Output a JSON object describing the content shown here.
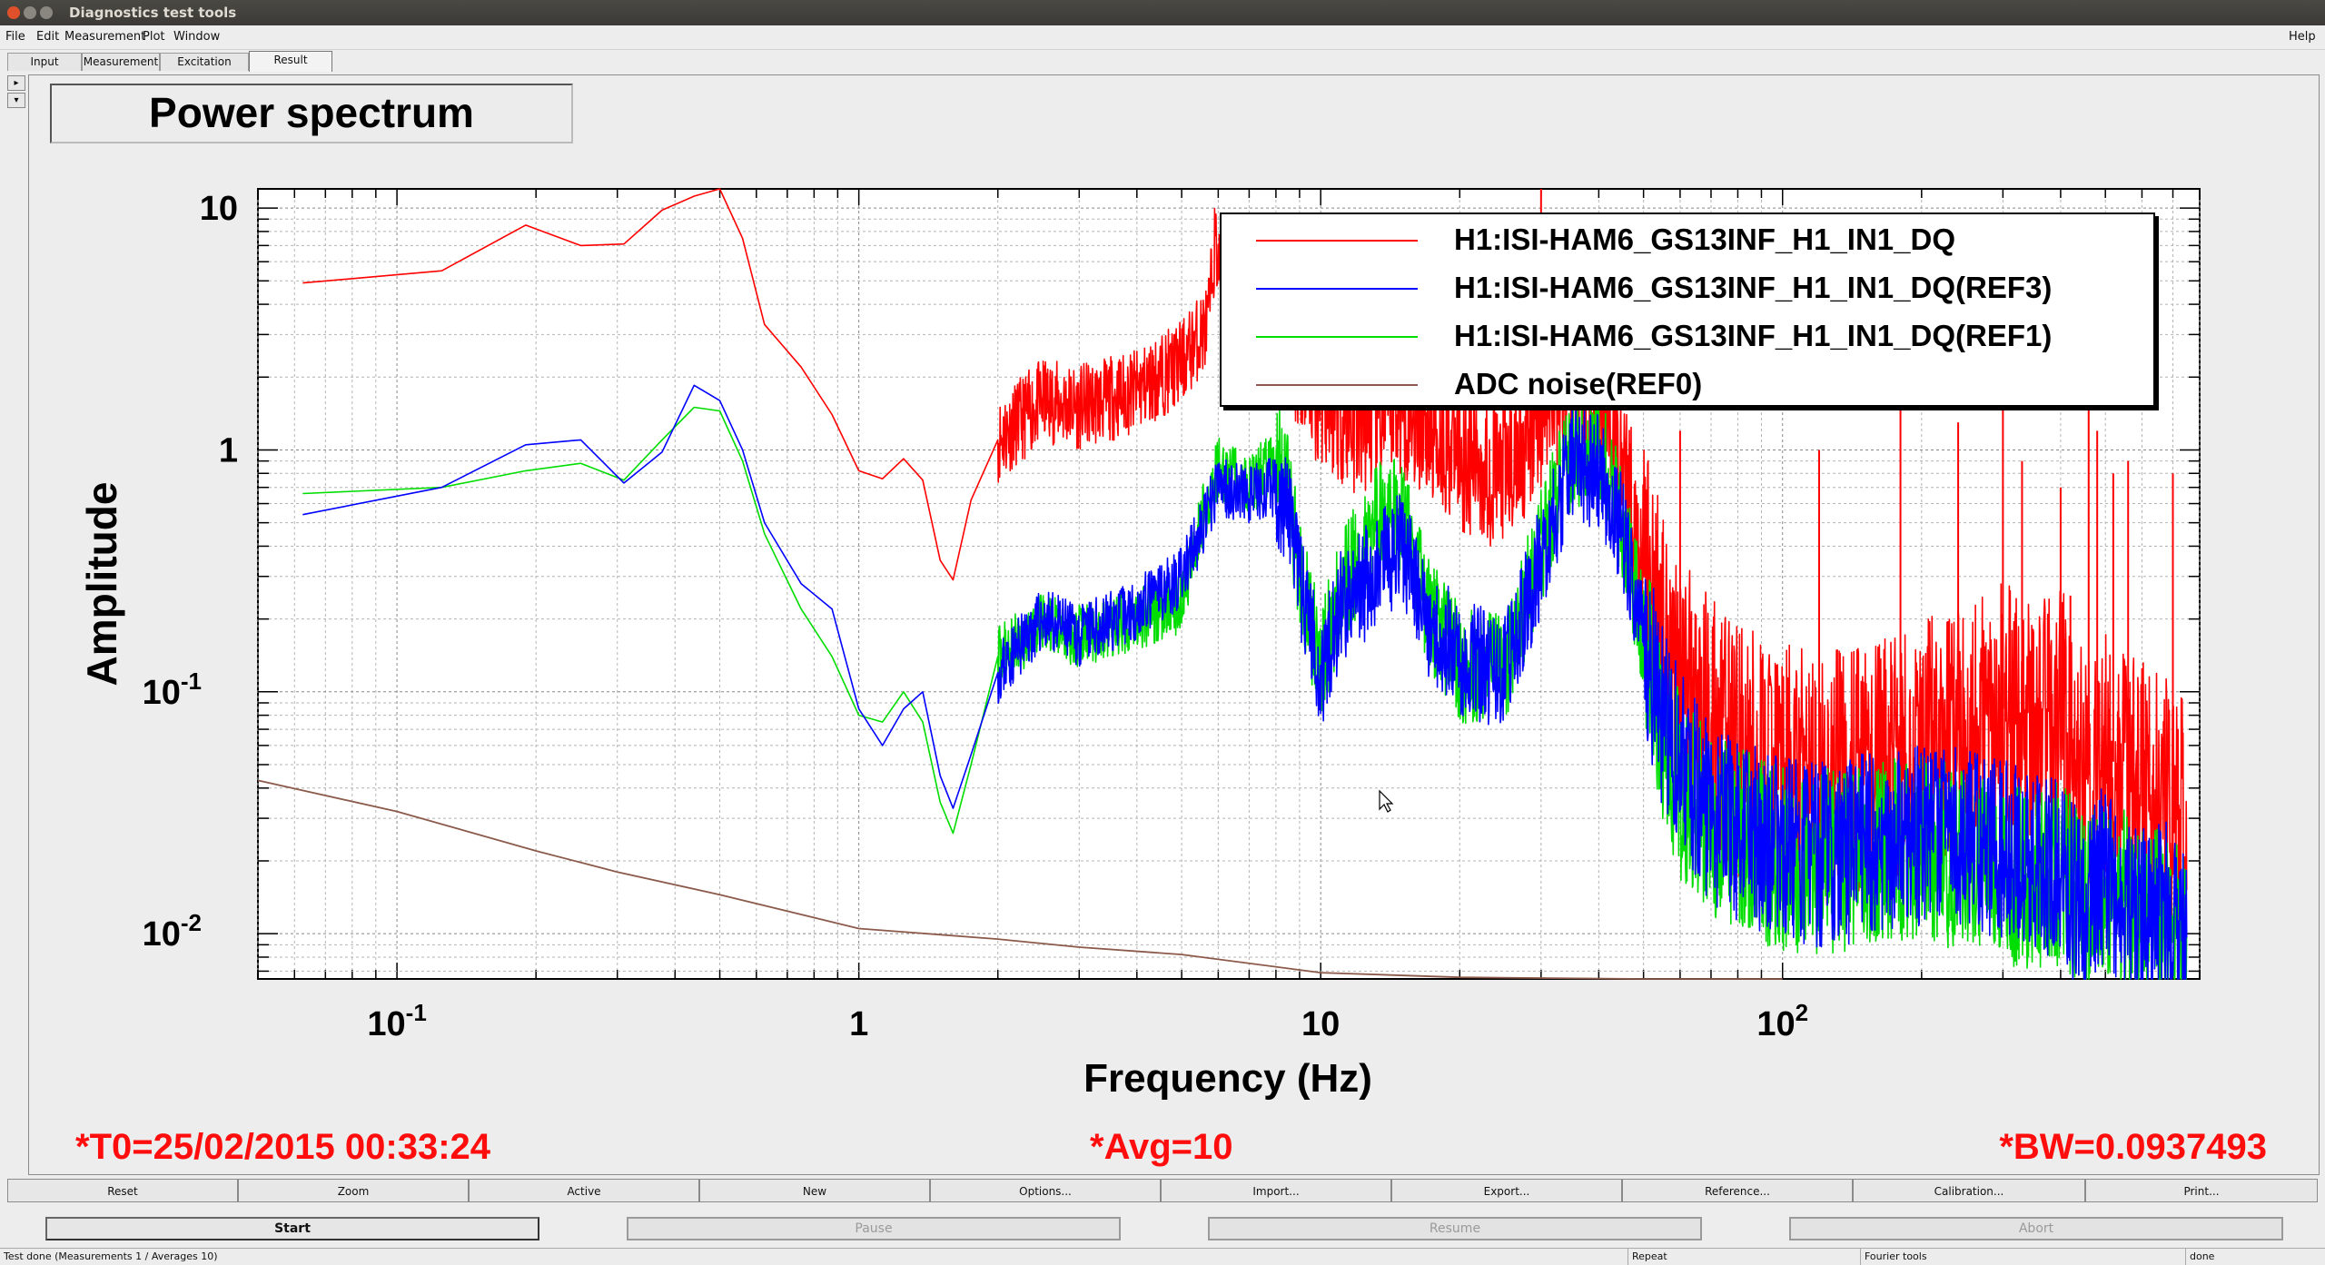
{
  "window": {
    "title": "Diagnostics test tools"
  },
  "menu": {
    "items": [
      "File",
      "Edit",
      "Measurement",
      "Plot",
      "Window"
    ],
    "help": "Help"
  },
  "tabs": [
    {
      "label": "Input",
      "active": false
    },
    {
      "label": "Measurement",
      "active": false
    },
    {
      "label": "Excitation",
      "active": false
    },
    {
      "label": "Result",
      "active": true
    }
  ],
  "plot": {
    "title": "Power spectrum",
    "status": {
      "t0": "*T0=25/02/2015 00:33:24",
      "avg": "*Avg=10",
      "bw": "*BW=0.0937493"
    }
  },
  "chart_data": {
    "type": "line",
    "title": "Power spectrum",
    "xlabel": "Frequency (Hz)",
    "ylabel": "Amplitude",
    "xscale": "log",
    "yscale": "log",
    "xlim": [
      0.05,
      800
    ],
    "ylim": [
      0.0065,
      12
    ],
    "grid": true,
    "legend_position": "top-right",
    "x_ticks": [
      {
        "value": 0.1,
        "label": "10",
        "exp": "-1"
      },
      {
        "value": 1,
        "label": "1",
        "exp": ""
      },
      {
        "value": 10,
        "label": "10",
        "exp": ""
      },
      {
        "value": 100,
        "label": "10",
        "exp": "2"
      }
    ],
    "y_ticks": [
      {
        "value": 10,
        "label": "10",
        "exp": ""
      },
      {
        "value": 1,
        "label": "1",
        "exp": ""
      },
      {
        "value": 0.1,
        "label": "10",
        "exp": "-1"
      },
      {
        "value": 0.01,
        "label": "10",
        "exp": "-2"
      }
    ],
    "series": [
      {
        "name": "H1:ISI-HAM6_GS13INF_H1_IN1_DQ",
        "color": "#ff0000",
        "noise": 0.22,
        "seed": 11,
        "points": [
          [
            0.0625,
            4.9
          ],
          [
            0.125,
            5.5
          ],
          [
            0.19,
            8.5
          ],
          [
            0.25,
            7.0
          ],
          [
            0.31,
            7.1
          ],
          [
            0.375,
            9.8
          ],
          [
            0.44,
            11.2
          ],
          [
            0.5,
            12.2
          ],
          [
            0.56,
            7.5
          ],
          [
            0.625,
            3.3
          ],
          [
            0.75,
            2.2
          ],
          [
            0.875,
            1.4
          ],
          [
            1.0,
            0.82
          ],
          [
            1.125,
            0.76
          ],
          [
            1.25,
            0.92
          ],
          [
            1.375,
            0.75
          ],
          [
            1.5,
            0.35
          ],
          [
            1.6,
            0.29
          ],
          [
            1.75,
            0.62
          ],
          [
            2.0,
            1.1
          ],
          [
            2.5,
            1.6
          ],
          [
            3.0,
            1.5
          ],
          [
            4.0,
            1.75
          ],
          [
            5.0,
            2.3
          ],
          [
            5.7,
            3.3
          ],
          [
            5.9,
            7.2
          ],
          [
            6.3,
            3.5
          ],
          [
            7.0,
            5.5
          ],
          [
            8.0,
            4.5
          ],
          [
            9.0,
            2.4
          ],
          [
            10.0,
            1.8
          ],
          [
            12.0,
            1.3
          ],
          [
            15.0,
            1.6
          ],
          [
            20.0,
            1.0
          ],
          [
            25.0,
            0.78
          ],
          [
            30.0,
            1.4
          ],
          [
            35.0,
            2.3
          ],
          [
            40.0,
            1.7
          ],
          [
            45.0,
            0.9
          ],
          [
            50.0,
            0.35
          ],
          [
            55.0,
            0.17
          ],
          [
            60.0,
            0.11
          ],
          [
            70.0,
            0.075
          ],
          [
            80.0,
            0.057
          ],
          [
            100.0,
            0.047
          ],
          [
            120.0,
            0.043
          ],
          [
            150.0,
            0.046
          ],
          [
            200.0,
            0.058
          ],
          [
            250.0,
            0.072
          ],
          [
            300.0,
            0.085
          ],
          [
            350.0,
            0.07
          ],
          [
            400.0,
            0.082
          ],
          [
            450.0,
            0.045
          ],
          [
            500.0,
            0.055
          ],
          [
            600.0,
            0.04
          ],
          [
            700.0,
            0.032
          ],
          [
            750.0,
            0.028
          ]
        ]
      },
      {
        "name": "H1:ISI-HAM6_GS13INF_H1_IN1_DQ(REF3)",
        "color": "#0000ff",
        "noise": 0.16,
        "seed": 23,
        "points": [
          [
            0.0625,
            0.54
          ],
          [
            0.125,
            0.7
          ],
          [
            0.19,
            1.05
          ],
          [
            0.25,
            1.1
          ],
          [
            0.31,
            0.73
          ],
          [
            0.375,
            0.98
          ],
          [
            0.44,
            1.85
          ],
          [
            0.5,
            1.6
          ],
          [
            0.56,
            1.0
          ],
          [
            0.625,
            0.5
          ],
          [
            0.75,
            0.28
          ],
          [
            0.875,
            0.22
          ],
          [
            1.0,
            0.085
          ],
          [
            1.125,
            0.06
          ],
          [
            1.25,
            0.085
          ],
          [
            1.375,
            0.1
          ],
          [
            1.5,
            0.045
          ],
          [
            1.6,
            0.033
          ],
          [
            1.75,
            0.055
          ],
          [
            2.0,
            0.12
          ],
          [
            2.5,
            0.2
          ],
          [
            3.0,
            0.17
          ],
          [
            4.0,
            0.22
          ],
          [
            5.0,
            0.3
          ],
          [
            5.5,
            0.45
          ],
          [
            6.0,
            0.72
          ],
          [
            7.0,
            0.65
          ],
          [
            8.0,
            0.7
          ],
          [
            8.5,
            0.55
          ],
          [
            9.0,
            0.28
          ],
          [
            10.0,
            0.12
          ],
          [
            11.0,
            0.22
          ],
          [
            13.0,
            0.3
          ],
          [
            15.0,
            0.4
          ],
          [
            17.0,
            0.2
          ],
          [
            20.0,
            0.14
          ],
          [
            25.0,
            0.12
          ],
          [
            30.0,
            0.35
          ],
          [
            35.0,
            0.9
          ],
          [
            40.0,
            0.8
          ],
          [
            45.0,
            0.45
          ],
          [
            50.0,
            0.16
          ],
          [
            55.0,
            0.08
          ],
          [
            60.0,
            0.05
          ],
          [
            70.0,
            0.032
          ],
          [
            80.0,
            0.027
          ],
          [
            100.0,
            0.022
          ],
          [
            130.0,
            0.021
          ],
          [
            160.0,
            0.024
          ],
          [
            200.0,
            0.026
          ],
          [
            250.0,
            0.024
          ],
          [
            300.0,
            0.022
          ],
          [
            350.0,
            0.019
          ],
          [
            400.0,
            0.02
          ],
          [
            450.0,
            0.012
          ],
          [
            500.0,
            0.018
          ],
          [
            600.0,
            0.012
          ],
          [
            700.0,
            0.012
          ],
          [
            750.0,
            0.011
          ]
        ]
      },
      {
        "name": "H1:ISI-HAM6_GS13INF_H1_IN1_DQ(REF1)",
        "color": "#00dd00",
        "noise": 0.16,
        "seed": 37,
        "points": [
          [
            0.0625,
            0.66
          ],
          [
            0.125,
            0.7
          ],
          [
            0.19,
            0.82
          ],
          [
            0.25,
            0.88
          ],
          [
            0.31,
            0.75
          ],
          [
            0.375,
            1.1
          ],
          [
            0.44,
            1.5
          ],
          [
            0.5,
            1.45
          ],
          [
            0.56,
            0.9
          ],
          [
            0.625,
            0.45
          ],
          [
            0.75,
            0.22
          ],
          [
            0.875,
            0.14
          ],
          [
            1.0,
            0.08
          ],
          [
            1.125,
            0.075
          ],
          [
            1.25,
            0.1
          ],
          [
            1.375,
            0.075
          ],
          [
            1.5,
            0.035
          ],
          [
            1.6,
            0.026
          ],
          [
            1.75,
            0.05
          ],
          [
            2.0,
            0.14
          ],
          [
            2.5,
            0.19
          ],
          [
            3.0,
            0.17
          ],
          [
            4.0,
            0.2
          ],
          [
            5.0,
            0.23
          ],
          [
            5.5,
            0.5
          ],
          [
            6.0,
            0.85
          ],
          [
            7.0,
            0.7
          ],
          [
            8.0,
            0.95
          ],
          [
            8.5,
            0.7
          ],
          [
            9.0,
            0.3
          ],
          [
            10.0,
            0.13
          ],
          [
            11.0,
            0.25
          ],
          [
            13.0,
            0.5
          ],
          [
            15.0,
            0.55
          ],
          [
            17.0,
            0.22
          ],
          [
            20.0,
            0.13
          ],
          [
            25.0,
            0.12
          ],
          [
            30.0,
            0.4
          ],
          [
            35.0,
            1.0
          ],
          [
            40.0,
            1.05
          ],
          [
            45.0,
            0.5
          ],
          [
            50.0,
            0.17
          ],
          [
            55.0,
            0.07
          ],
          [
            60.0,
            0.04
          ],
          [
            70.0,
            0.028
          ],
          [
            80.0,
            0.025
          ],
          [
            100.0,
            0.02
          ],
          [
            130.0,
            0.02
          ],
          [
            160.0,
            0.022
          ],
          [
            200.0,
            0.023
          ],
          [
            250.0,
            0.02
          ],
          [
            300.0,
            0.018
          ],
          [
            350.0,
            0.016
          ],
          [
            400.0,
            0.018
          ],
          [
            450.0,
            0.013
          ],
          [
            500.0,
            0.016
          ],
          [
            600.0,
            0.012
          ],
          [
            700.0,
            0.011
          ],
          [
            750.0,
            0.011
          ]
        ]
      },
      {
        "name": "ADC noise(REF0)",
        "color": "#8b5a4a",
        "noise": 0,
        "seed": 0,
        "points": [
          [
            0.05,
            0.043
          ],
          [
            0.1,
            0.032
          ],
          [
            0.2,
            0.022
          ],
          [
            0.3,
            0.018
          ],
          [
            0.5,
            0.0145
          ],
          [
            1.0,
            0.0105
          ],
          [
            2.0,
            0.0095
          ],
          [
            3.0,
            0.0088
          ],
          [
            5.0,
            0.0082
          ],
          [
            10.0,
            0.0069
          ],
          [
            20.0,
            0.0066
          ],
          [
            50.0,
            0.0064
          ],
          [
            100.0,
            0.0064
          ]
        ]
      }
    ],
    "red_spikes": [
      [
        30,
        12
      ],
      [
        38,
        8.5
      ],
      [
        60,
        1.2
      ],
      [
        120,
        1.0
      ],
      [
        180,
        1.6
      ],
      [
        240,
        1.3
      ],
      [
        300,
        1.5
      ],
      [
        330,
        0.9
      ],
      [
        400,
        0.7
      ],
      [
        420,
        0.25
      ],
      [
        460,
        1.8
      ],
      [
        480,
        1.2
      ],
      [
        520,
        0.8
      ],
      [
        560,
        0.9
      ],
      [
        700,
        0.8
      ]
    ]
  },
  "buttons_row1": [
    "Reset",
    "Zoom",
    "Active",
    "New",
    "Options...",
    "Import...",
    "Export...",
    "Reference...",
    "Calibration...",
    "Print..."
  ],
  "buttons_row2": [
    {
      "label": "Start",
      "enabled": true
    },
    {
      "label": "Pause",
      "enabled": false
    },
    {
      "label": "Resume",
      "enabled": false
    },
    {
      "label": "Abort",
      "enabled": false
    }
  ],
  "statusbar": {
    "message": "Test done (Measurements 1 / Averages 10)",
    "mode": "Repeat",
    "tool": "Fourier tools",
    "state": "done"
  }
}
